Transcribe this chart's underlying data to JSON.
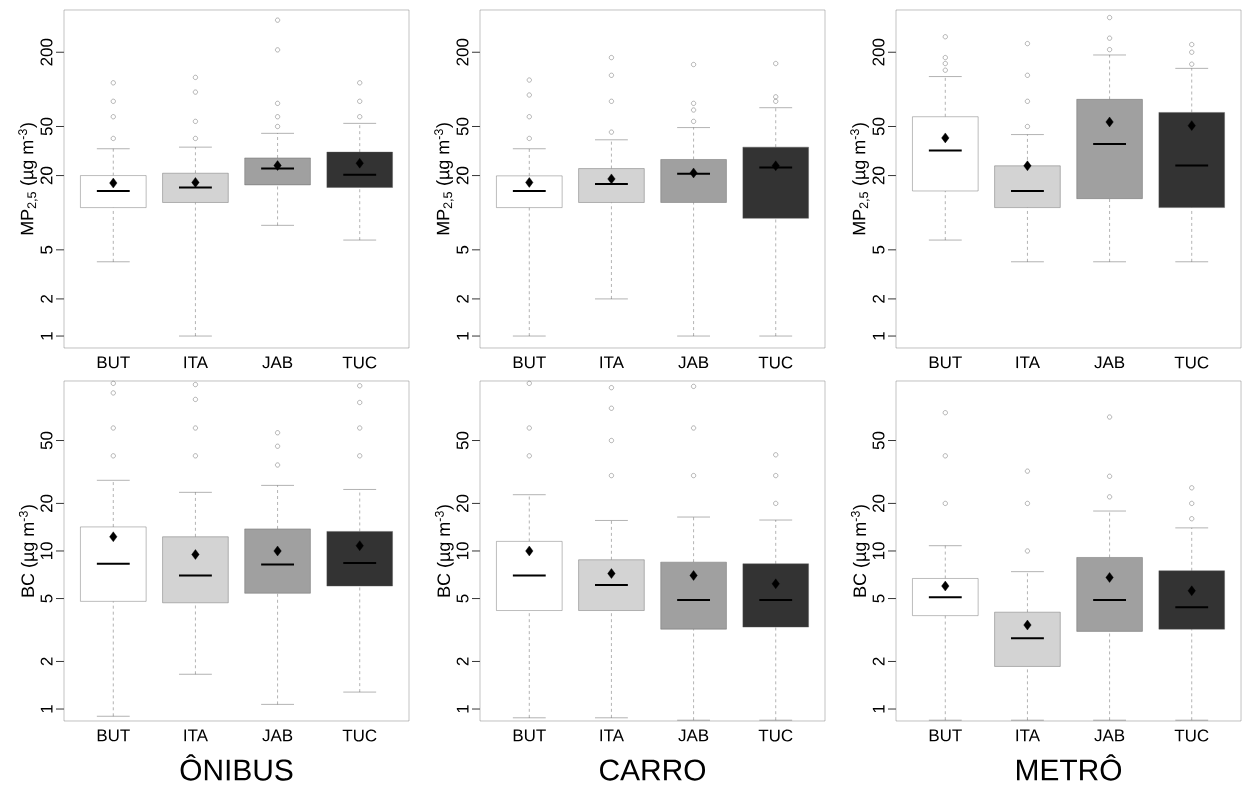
{
  "chart_data": [
    {
      "type": "box",
      "categories": [
        "BUT",
        "ITA",
        "JAB",
        "TUC"
      ],
      "ylabel": "MP$_{2,5}$ (µg m$^{-3}$)",
      "log": true,
      "ylim": [
        0.8,
        440
      ],
      "yticks": [
        1,
        2,
        5,
        20,
        50,
        200
      ],
      "colors": [
        "#ffffff",
        "#d3d3d3",
        "#a0a0a0",
        "#333333"
      ],
      "boxes": [
        {
          "low": 4.0,
          "q1": 11.0,
          "median": 15.0,
          "q3": 20.0,
          "high": 33,
          "mean": 17.4,
          "outliers": [
            40,
            60,
            80,
            113
          ]
        },
        {
          "low": 1.0,
          "q1": 12.1,
          "median": 16.0,
          "q3": 20.9,
          "high": 34,
          "mean": 17.6,
          "outliers": [
            40,
            55,
            95,
            125
          ]
        },
        {
          "low": 7.9,
          "q1": 16.8,
          "median": 22.8,
          "q3": 27.8,
          "high": 44,
          "mean": 24.1,
          "outliers": [
            50,
            60,
            77,
            209,
            364
          ]
        },
        {
          "low": 6.0,
          "q1": 16.0,
          "median": 20.3,
          "q3": 31.0,
          "high": 53,
          "mean": 25.2,
          "outliers": [
            60,
            80,
            113
          ]
        }
      ]
    },
    {
      "type": "box",
      "categories": [
        "BUT",
        "ITA",
        "JAB",
        "TUC"
      ],
      "ylabel": "MP$_{2,5}$ (µg m$^{-3}$)",
      "log": true,
      "ylim": [
        0.8,
        440
      ],
      "yticks": [
        1,
        2,
        5,
        20,
        50,
        200
      ],
      "colors": [
        "#ffffff",
        "#d3d3d3",
        "#a0a0a0",
        "#333333"
      ],
      "boxes": [
        {
          "low": 1.0,
          "q1": 11.0,
          "median": 15.0,
          "q3": 19.9,
          "high": 33,
          "mean": 17.6,
          "outliers": [
            40,
            60,
            90,
            119
          ]
        },
        {
          "low": 2.0,
          "q1": 12.1,
          "median": 17.1,
          "q3": 22.8,
          "high": 39,
          "mean": 18.8,
          "outliers": [
            45,
            80,
            130,
            181
          ]
        },
        {
          "low": 1.0,
          "q1": 12.1,
          "median": 20.7,
          "q3": 27.0,
          "high": 49,
          "mean": 21.0,
          "outliers": [
            55,
            68,
            77,
            159
          ]
        },
        {
          "low": 1.0,
          "q1": 9.0,
          "median": 23.3,
          "q3": 34.0,
          "high": 71,
          "mean": 24.0,
          "outliers": [
            80,
            87,
            162
          ]
        }
      ]
    },
    {
      "type": "box",
      "categories": [
        "BUT",
        "ITA",
        "JAB",
        "TUC"
      ],
      "ylabel": "MP$_{2,5}$ (µg m$^{-3}$)",
      "log": true,
      "ylim": [
        0.8,
        440
      ],
      "yticks": [
        1,
        2,
        5,
        20,
        50,
        200
      ],
      "colors": [
        "#ffffff",
        "#d3d3d3",
        "#a0a0a0",
        "#333333"
      ],
      "boxes": [
        {
          "low": 6.0,
          "q1": 15.0,
          "median": 31.9,
          "q3": 60,
          "high": 127,
          "mean": 40.4,
          "outliers": [
            143,
            162,
            181,
            267
          ]
        },
        {
          "low": 4.0,
          "q1": 11.0,
          "median": 15.0,
          "q3": 24.0,
          "high": 43,
          "mean": 24.0,
          "outliers": [
            50,
            80,
            130,
            235
          ]
        },
        {
          "low": 4.0,
          "q1": 13.0,
          "median": 36.1,
          "q3": 83,
          "high": 190,
          "mean": 54.4,
          "outliers": [
            210,
            260,
            382
          ]
        },
        {
          "low": 4.0,
          "q1": 11.0,
          "median": 24.1,
          "q3": 65,
          "high": 148,
          "mean": 50.8,
          "outliers": [
            160,
            200,
            231
          ]
        }
      ]
    },
    {
      "type": "box",
      "categories": [
        "BUT",
        "ITA",
        "JAB",
        "TUC"
      ],
      "ylabel": "BC (µg m$^{-3}$)",
      "xlabel": "ÔNIBUS",
      "log": true,
      "ylim": [
        0.84,
        119
      ],
      "yticks": [
        1,
        2,
        5,
        10,
        20,
        50
      ],
      "colors": [
        "#ffffff",
        "#d3d3d3",
        "#a0a0a0",
        "#333333"
      ],
      "boxes": [
        {
          "low": 0.9,
          "q1": 4.8,
          "median": 8.3,
          "q3": 14.2,
          "high": 28,
          "mean": 12.3,
          "outliers": [
            40,
            60,
            100,
            115
          ]
        },
        {
          "low": 1.66,
          "q1": 4.7,
          "median": 7.0,
          "q3": 12.3,
          "high": 23.5,
          "mean": 9.5,
          "outliers": [
            40,
            60,
            91,
            113
          ]
        },
        {
          "low": 1.07,
          "q1": 5.4,
          "median": 8.2,
          "q3": 13.8,
          "high": 26,
          "mean": 10.0,
          "outliers": [
            35,
            46,
            56
          ]
        },
        {
          "low": 1.28,
          "q1": 6.0,
          "median": 8.4,
          "q3": 13.3,
          "high": 24.5,
          "mean": 10.8,
          "outliers": [
            40,
            60,
            87,
            111
          ]
        }
      ]
    },
    {
      "type": "box",
      "categories": [
        "BUT",
        "ITA",
        "JAB",
        "TUC"
      ],
      "ylabel": "BC (µg m$^{-3}$)",
      "xlabel": "CARRO",
      "log": true,
      "ylim": [
        0.84,
        119
      ],
      "yticks": [
        1,
        2,
        5,
        10,
        20,
        50
      ],
      "colors": [
        "#ffffff",
        "#d3d3d3",
        "#a0a0a0",
        "#333333"
      ],
      "boxes": [
        {
          "low": 0.88,
          "q1": 4.2,
          "median": 7.0,
          "q3": 11.5,
          "high": 22.7,
          "mean": 10.0,
          "outliers": [
            40,
            60,
            115
          ]
        },
        {
          "low": 0.88,
          "q1": 4.2,
          "median": 6.1,
          "q3": 8.8,
          "high": 15.6,
          "mean": 7.2,
          "outliers": [
            30,
            50,
            80,
            108
          ]
        },
        {
          "low": 0.85,
          "q1": 3.2,
          "median": 4.9,
          "q3": 8.5,
          "high": 16.4,
          "mean": 7.0,
          "outliers": [
            30,
            60,
            110
          ]
        },
        {
          "low": 0.85,
          "q1": 3.3,
          "median": 4.9,
          "q3": 8.3,
          "high": 15.7,
          "mean": 6.2,
          "outliers": [
            20,
            30,
            40.6
          ]
        }
      ]
    },
    {
      "type": "box",
      "categories": [
        "BUT",
        "ITA",
        "JAB",
        "TUC"
      ],
      "ylabel": "BC (µg m$^{-3}$)",
      "xlabel": "METRÔ",
      "log": true,
      "ylim": [
        0.84,
        119
      ],
      "yticks": [
        1,
        2,
        5,
        10,
        20,
        50
      ],
      "colors": [
        "#ffffff",
        "#d3d3d3",
        "#a0a0a0",
        "#333333"
      ],
      "boxes": [
        {
          "low": 0.85,
          "q1": 3.9,
          "median": 5.1,
          "q3": 6.7,
          "high": 10.8,
          "mean": 6.0,
          "outliers": [
            20,
            40,
            75
          ]
        },
        {
          "low": 0.85,
          "q1": 1.86,
          "median": 2.8,
          "q3": 4.1,
          "high": 7.4,
          "mean": 3.4,
          "outliers": [
            10,
            20,
            32
          ]
        },
        {
          "low": 0.85,
          "q1": 3.1,
          "median": 4.9,
          "q3": 9.1,
          "high": 17.9,
          "mean": 6.8,
          "outliers": [
            22,
            29.7,
            70.4
          ]
        },
        {
          "low": 0.85,
          "q1": 3.2,
          "median": 4.4,
          "q3": 7.5,
          "high": 14.0,
          "mean": 5.6,
          "outliers": [
            16,
            20,
            25.1
          ]
        }
      ]
    }
  ]
}
